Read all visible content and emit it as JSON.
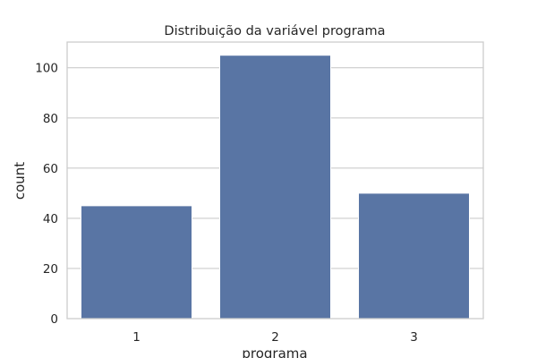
{
  "chart_data": {
    "type": "bar",
    "title": "Distribuição da variável programa",
    "xlabel": "programa",
    "ylabel": "count",
    "categories": [
      "1",
      "2",
      "3"
    ],
    "values": [
      45,
      105,
      50
    ],
    "yticks": [
      0,
      20,
      40,
      60,
      80,
      100
    ],
    "ylim": [
      0,
      110.25
    ],
    "grid": "y",
    "colors": {
      "bar": "#5975a4",
      "grid": "#cccccc",
      "spine": "#cccccc",
      "text": "#262626"
    }
  }
}
